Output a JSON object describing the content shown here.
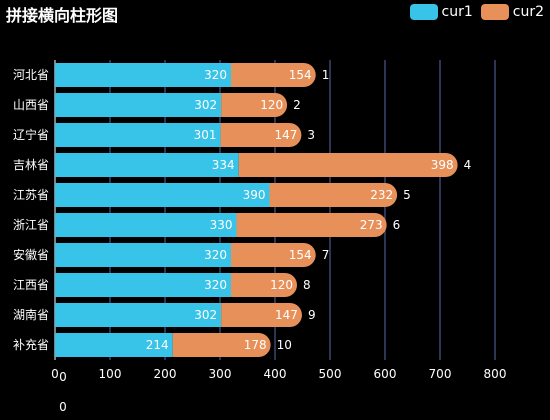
{
  "title": "拼接横向柱形图",
  "chart_data": {
    "type": "bar",
    "orientation": "horizontal",
    "stacked": true,
    "title": "拼接横向柱形图",
    "categories": [
      "河北省",
      "山西省",
      "辽宁省",
      "吉林省",
      "江苏省",
      "浙江省",
      "安徽省",
      "江西省",
      "湖南省",
      "补充省"
    ],
    "series": [
      {
        "name": "cur1",
        "color": "#38c3e8",
        "values": [
          320,
          302,
          301,
          334,
          390,
          330,
          320,
          320,
          302,
          214
        ]
      },
      {
        "name": "cur2",
        "color": "#e8905a",
        "values": [
          154,
          120,
          147,
          398,
          232,
          273,
          154,
          120,
          147,
          178
        ]
      }
    ],
    "bar_end_labels": [
      "1",
      "2",
      "3",
      "4",
      "5",
      "6",
      "7",
      "8",
      "9",
      "10"
    ],
    "xlim": [
      0,
      800
    ],
    "xticks": [
      "0",
      "100",
      "200",
      "300",
      "400",
      "500",
      "600",
      "700",
      "800"
    ],
    "extra_labels": [
      "0",
      "0"
    ],
    "grid": true,
    "legend_position": "top-right"
  }
}
